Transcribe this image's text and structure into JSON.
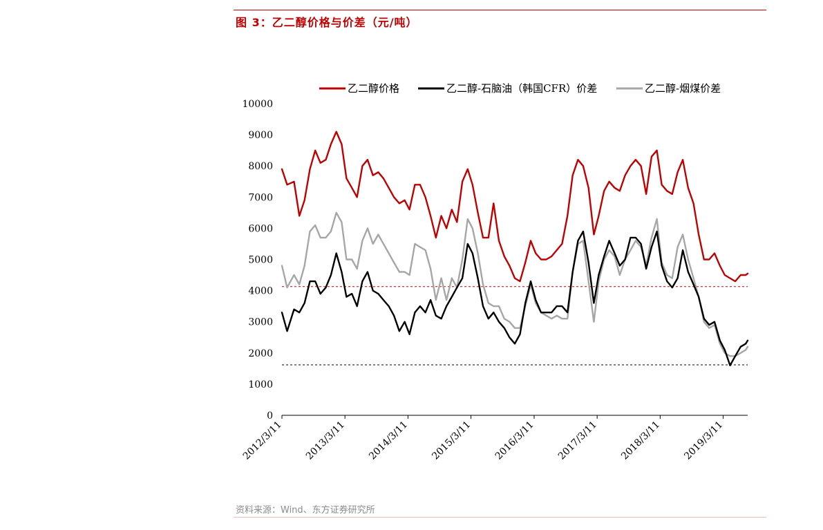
{
  "figure": {
    "title": "图 3：乙二醇价格与价差（元/吨）",
    "source": "资料来源：Wind、东方证券研究所"
  },
  "colors": {
    "accent": "#c00000",
    "price": "#c00000",
    "naphtha_spread": "#000000",
    "coal_spread": "#a6a6a6",
    "ref_upper": "#c00000",
    "ref_lower": "#000000"
  },
  "chart_data": {
    "type": "line",
    "title": "",
    "xlabel": "",
    "ylabel": "",
    "ylim": [
      0,
      10000
    ],
    "yticks": [
      0,
      1000,
      2000,
      3000,
      4000,
      5000,
      6000,
      7000,
      8000,
      9000,
      10000
    ],
    "xlim": [
      "2012/3/11",
      "2019/7/31"
    ],
    "xticks": [
      "2012/3/11",
      "2013/3/11",
      "2014/3/11",
      "2015/3/11",
      "2016/3/11",
      "2017/3/11",
      "2018/3/11",
      "2019/3/11"
    ],
    "grid": false,
    "legend_position": "top",
    "reference_lines": [
      {
        "y": 4130,
        "color": "#c00000",
        "style": "dashed"
      },
      {
        "y": 1620,
        "color": "#000000",
        "style": "dashed"
      }
    ],
    "series": [
      {
        "name": "乙二醇价格",
        "color": "#c00000",
        "x": [
          "2012/3/11",
          "2012/4/10",
          "2012/5/20",
          "2012/6/20",
          "2012/7/20",
          "2012/8/20",
          "2012/9/20",
          "2012/10/20",
          "2012/11/20",
          "2012/12/20",
          "2013/1/20",
          "2013/2/20",
          "2013/3/20",
          "2013/4/20",
          "2013/5/20",
          "2013/6/20",
          "2013/7/20",
          "2013/8/20",
          "2013/9/20",
          "2013/10/20",
          "2013/11/20",
          "2013/12/20",
          "2014/1/20",
          "2014/2/20",
          "2014/3/20",
          "2014/4/20",
          "2014/5/20",
          "2014/6/20",
          "2014/7/20",
          "2014/8/20",
          "2014/9/20",
          "2014/10/20",
          "2014/11/20",
          "2014/12/20",
          "2015/1/20",
          "2015/2/20",
          "2015/3/20",
          "2015/4/20",
          "2015/5/20",
          "2015/6/20",
          "2015/7/20",
          "2015/8/20",
          "2015/9/20",
          "2015/10/20",
          "2015/11/20",
          "2015/12/20",
          "2016/1/20",
          "2016/2/20",
          "2016/3/20",
          "2016/4/20",
          "2016/5/20",
          "2016/6/20",
          "2016/7/20",
          "2016/8/20",
          "2016/9/20",
          "2016/10/20",
          "2016/11/20",
          "2016/12/20",
          "2017/1/20",
          "2017/2/20",
          "2017/3/20",
          "2017/4/20",
          "2017/5/20",
          "2017/6/20",
          "2017/7/20",
          "2017/8/20",
          "2017/9/20",
          "2017/10/20",
          "2017/11/20",
          "2017/12/20",
          "2018/1/20",
          "2018/2/20",
          "2018/3/20",
          "2018/4/20",
          "2018/5/20",
          "2018/6/20",
          "2018/7/20",
          "2018/8/20",
          "2018/9/20",
          "2018/10/20",
          "2018/11/20",
          "2018/12/20",
          "2019/1/20",
          "2019/2/20",
          "2019/3/20",
          "2019/4/20",
          "2019/5/20",
          "2019/6/20",
          "2019/7/20",
          "2019/7/31"
        ],
        "values": [
          7900,
          7400,
          7500,
          6400,
          6900,
          7900,
          8500,
          8100,
          8200,
          8700,
          9100,
          8700,
          7600,
          7300,
          7000,
          8000,
          8200,
          7700,
          7800,
          7600,
          7300,
          7000,
          6800,
          6900,
          6600,
          7400,
          7400,
          7000,
          6400,
          5700,
          6400,
          6000,
          6600,
          6200,
          7500,
          7900,
          7400,
          6500,
          5700,
          5700,
          6800,
          5600,
          5100,
          4800,
          4400,
          4300,
          4900,
          5600,
          5200,
          5000,
          5000,
          5100,
          5300,
          5500,
          6400,
          7700,
          8200,
          8000,
          7300,
          5800,
          6400,
          7200,
          7500,
          7300,
          7200,
          7700,
          8000,
          8200,
          8000,
          7100,
          8300,
          8500,
          7400,
          7200,
          7100,
          7800,
          8200,
          7300,
          6800,
          5800,
          5000,
          5000,
          5200,
          4800,
          4500,
          4400,
          4300,
          4500,
          4500,
          4550
        ]
      },
      {
        "name": "乙二醇-石脑油（韩国CFR）价差",
        "color": "#000000",
        "x": [
          "2012/3/11",
          "2012/4/10",
          "2012/5/20",
          "2012/6/20",
          "2012/7/20",
          "2012/8/20",
          "2012/9/20",
          "2012/10/20",
          "2012/11/20",
          "2012/12/20",
          "2013/1/20",
          "2013/2/20",
          "2013/3/20",
          "2013/4/20",
          "2013/5/20",
          "2013/6/20",
          "2013/7/20",
          "2013/8/20",
          "2013/9/20",
          "2013/10/20",
          "2013/11/20",
          "2013/12/20",
          "2014/1/20",
          "2014/2/20",
          "2014/3/20",
          "2014/4/20",
          "2014/5/20",
          "2014/6/20",
          "2014/7/20",
          "2014/8/20",
          "2014/9/20",
          "2014/10/20",
          "2014/11/20",
          "2014/12/20",
          "2015/1/20",
          "2015/2/20",
          "2015/3/20",
          "2015/4/20",
          "2015/5/20",
          "2015/6/20",
          "2015/7/20",
          "2015/8/20",
          "2015/9/20",
          "2015/10/20",
          "2015/11/20",
          "2015/12/20",
          "2016/1/20",
          "2016/2/20",
          "2016/3/20",
          "2016/4/20",
          "2016/5/20",
          "2016/6/20",
          "2016/7/20",
          "2016/8/20",
          "2016/9/20",
          "2016/10/20",
          "2016/11/20",
          "2016/12/20",
          "2017/1/20",
          "2017/2/20",
          "2017/3/20",
          "2017/4/20",
          "2017/5/20",
          "2017/6/20",
          "2017/7/20",
          "2017/8/20",
          "2017/9/20",
          "2017/10/20",
          "2017/11/20",
          "2017/12/20",
          "2018/1/20",
          "2018/2/20",
          "2018/3/20",
          "2018/4/20",
          "2018/5/20",
          "2018/6/20",
          "2018/7/20",
          "2018/8/20",
          "2018/9/20",
          "2018/10/20",
          "2018/11/20",
          "2018/12/20",
          "2019/1/20",
          "2019/2/20",
          "2019/3/20",
          "2019/4/20",
          "2019/5/20",
          "2019/6/20",
          "2019/7/20",
          "2019/7/31"
        ],
        "values": [
          3300,
          2700,
          3400,
          3300,
          3600,
          4300,
          4300,
          3900,
          4100,
          4500,
          5200,
          4600,
          3800,
          3900,
          3500,
          4300,
          4600,
          4000,
          3900,
          3700,
          3500,
          3200,
          2700,
          3000,
          2600,
          3300,
          3500,
          3300,
          3700,
          3200,
          3100,
          3500,
          3800,
          4100,
          4400,
          5500,
          5200,
          4400,
          3500,
          3100,
          3300,
          3000,
          2800,
          2500,
          2300,
          2600,
          3600,
          4300,
          3700,
          3300,
          3300,
          3300,
          3500,
          3500,
          3300,
          4600,
          5600,
          5900,
          4900,
          3600,
          4500,
          5100,
          5600,
          5200,
          4800,
          5000,
          5700,
          5700,
          5500,
          4700,
          5400,
          5900,
          4800,
          4300,
          4100,
          4400,
          5300,
          4600,
          4200,
          3800,
          3100,
          2900,
          3000,
          2400,
          2100,
          1600,
          1900,
          2200,
          2300,
          2400
        ]
      },
      {
        "name": "乙二醇-烟煤价差",
        "color": "#a6a6a6",
        "x": [
          "2012/3/11",
          "2012/4/10",
          "2012/5/20",
          "2012/6/20",
          "2012/7/20",
          "2012/8/20",
          "2012/9/20",
          "2012/10/20",
          "2012/11/20",
          "2012/12/20",
          "2013/1/20",
          "2013/2/20",
          "2013/3/20",
          "2013/4/20",
          "2013/5/20",
          "2013/6/20",
          "2013/7/20",
          "2013/8/20",
          "2013/9/20",
          "2013/10/20",
          "2013/11/20",
          "2013/12/20",
          "2014/1/20",
          "2014/2/20",
          "2014/3/20",
          "2014/4/20",
          "2014/5/20",
          "2014/6/20",
          "2014/7/20",
          "2014/8/20",
          "2014/9/20",
          "2014/10/20",
          "2014/11/20",
          "2014/12/20",
          "2015/1/20",
          "2015/2/20",
          "2015/3/20",
          "2015/4/20",
          "2015/5/20",
          "2015/6/20",
          "2015/7/20",
          "2015/8/20",
          "2015/9/20",
          "2015/10/20",
          "2015/11/20",
          "2015/12/20",
          "2016/1/20",
          "2016/2/20",
          "2016/3/20",
          "2016/4/20",
          "2016/5/20",
          "2016/6/20",
          "2016/7/20",
          "2016/8/20",
          "2016/9/20",
          "2016/10/20",
          "2016/11/20",
          "2016/12/20",
          "2017/1/20",
          "2017/2/20",
          "2017/3/20",
          "2017/4/20",
          "2017/5/20",
          "2017/6/20",
          "2017/7/20",
          "2017/8/20",
          "2017/9/20",
          "2017/10/20",
          "2017/11/20",
          "2017/12/20",
          "2018/1/20",
          "2018/2/20",
          "2018/3/20",
          "2018/4/20",
          "2018/5/20",
          "2018/6/20",
          "2018/7/20",
          "2018/8/20",
          "2018/9/20",
          "2018/10/20",
          "2018/11/20",
          "2018/12/20",
          "2019/1/20",
          "2019/2/20",
          "2019/3/20",
          "2019/4/20",
          "2019/5/20",
          "2019/6/20",
          "2019/7/20",
          "2019/7/31"
        ],
        "values": [
          4800,
          4100,
          4500,
          4200,
          4800,
          5900,
          6100,
          5700,
          5700,
          5900,
          6500,
          6200,
          5000,
          5000,
          4700,
          5600,
          6000,
          5500,
          5800,
          5500,
          5200,
          4900,
          4600,
          4600,
          4500,
          5500,
          5400,
          5300,
          4700,
          3700,
          4400,
          3700,
          4400,
          4100,
          5000,
          6300,
          6000,
          5200,
          4200,
          3600,
          3500,
          3500,
          3100,
          3000,
          2800,
          2800,
          3500,
          4200,
          3600,
          3300,
          3200,
          3100,
          3200,
          3100,
          3100,
          4600,
          5500,
          5600,
          4300,
          3000,
          4300,
          5000,
          5300,
          5100,
          4500,
          5000,
          5300,
          5600,
          5400,
          4800,
          5700,
          6300,
          4900,
          4500,
          4400,
          5400,
          5800,
          5000,
          4400,
          3800,
          3000,
          2800,
          2900,
          2300,
          2000,
          1900,
          1900,
          2000,
          2100,
          2200
        ]
      }
    ]
  }
}
